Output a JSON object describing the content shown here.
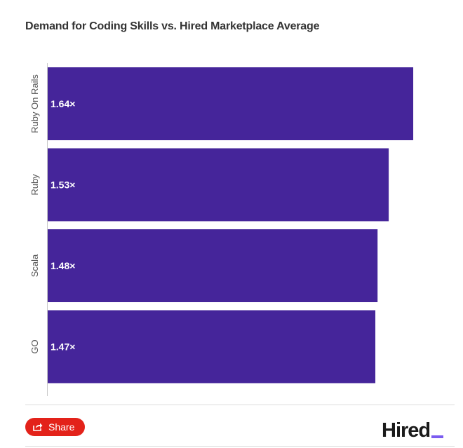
{
  "chart_data": {
    "type": "bar",
    "orientation": "horizontal",
    "title": "Demand for Coding Skills vs. Hired Marketplace Average",
    "categories": [
      "Ruby On Rails",
      "Ruby",
      "Scala",
      "GO"
    ],
    "values": [
      1.64,
      1.53,
      1.48,
      1.47
    ],
    "value_labels": [
      "1.64×",
      "1.53×",
      "1.48×",
      "1.47×"
    ],
    "xlim": [
      0,
      1.75
    ],
    "bar_color": "#45259a",
    "xlabel": "",
    "ylabel": "",
    "grid": false,
    "legend": false
  },
  "footer": {
    "share_label": "Share",
    "share_color": "#e3221a",
    "logo_text": "Hired",
    "logo_accent_color": "#7b5cf0"
  }
}
